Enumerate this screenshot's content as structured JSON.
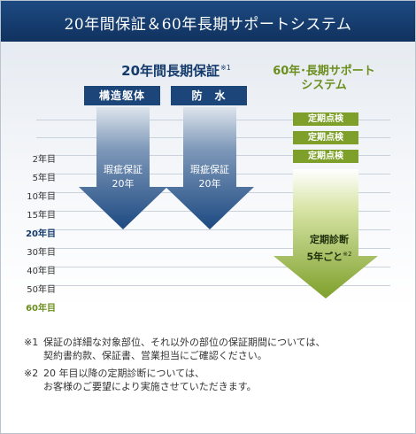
{
  "header": {
    "title": "20年間保証＆60年長期サポートシステム"
  },
  "warranty": {
    "title": "20年間長期保証",
    "title_mark": "※1",
    "columns": [
      {
        "label": "構造躯体",
        "arrow_line1": "瑕疵保証",
        "arrow_line2": "20年"
      },
      {
        "label": "防　水",
        "arrow_line1": "瑕疵保証",
        "arrow_line2": "20年"
      }
    ]
  },
  "support": {
    "title_line1": "60年･長期サポート",
    "title_line2": "システム",
    "checks": [
      "定期点検",
      "定期点検",
      "定期点検"
    ],
    "diagnosis_line1": "定期診断",
    "diagnosis_line2": "5年ごと",
    "diagnosis_mark": "※2"
  },
  "timeline": [
    "2年目",
    "5年目",
    "10年目",
    "15年目",
    "20年目",
    "30年目",
    "40年目",
    "50年目",
    "60年目"
  ],
  "notes": [
    {
      "mark": "※1",
      "line1": "保証の詳細な対象部位、それ以外の部位の保証期間については、",
      "line2": "契約書約款、保証書、営業担当にご確認ください。"
    },
    {
      "mark": "※2",
      "line1": "20 年目以降の定期診断については、",
      "line2": "お客様のご要望により実施させていただきます。"
    }
  ],
  "colors": {
    "header_bg": "#163c6b",
    "warranty_blue": "#143a6c",
    "support_green": "#6c8e1f",
    "check_green": "#7ea02b"
  }
}
